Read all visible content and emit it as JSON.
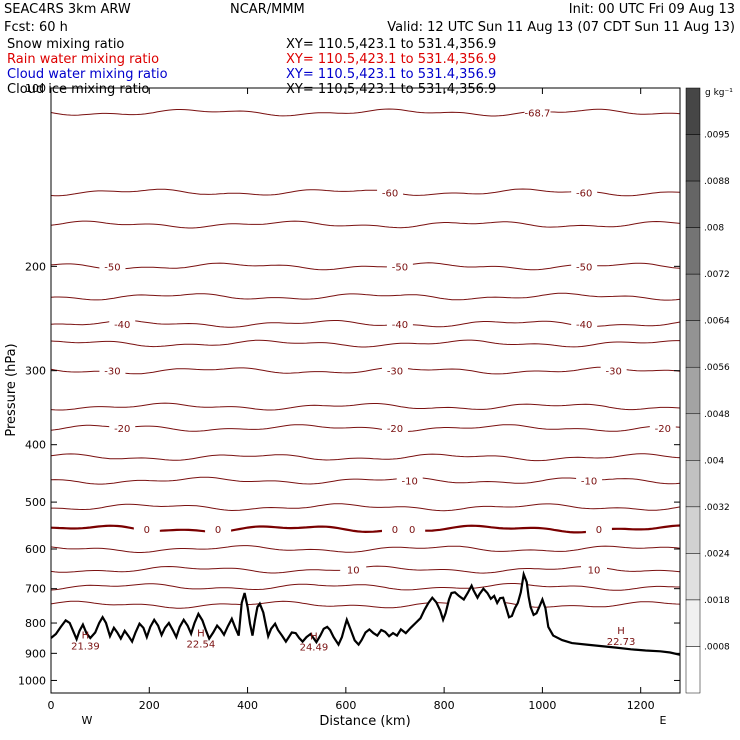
{
  "header": {
    "left1": "SEAC4RS  3km ARW",
    "center1": "NCAR/MMM",
    "right1": "Init: 00 UTC Fri 09 Aug 13",
    "left2": "Fcst:   60 h",
    "right2": "Valid: 12 UTC Sun 11 Aug 13 (07 CDT Sun 11 Aug 13)",
    "fields": [
      {
        "name": "Snow mixing ratio",
        "xy": "XY= 110.5,423.1 to 531.4,356.9",
        "color": "#000000"
      },
      {
        "name": "Rain water mixing ratio",
        "xy": "XY= 110.5,423.1 to 531.4,356.9",
        "color": "#dd0000"
      },
      {
        "name": "Cloud water mixing ratio",
        "xy": "XY= 110.5,423.1 to 531.4,356.9",
        "color": "#0000cc"
      },
      {
        "name": "Cloud ice mixing ratio",
        "xy": "XY= 110.5,423.1 to 531.4,356.9",
        "color": "#000000"
      }
    ]
  },
  "chart_data": {
    "type": "contour",
    "xlabel": "Distance (km)",
    "ylabel": "Pressure (hPa)",
    "xlim": [
      0,
      1280
    ],
    "ylim": [
      1050,
      100
    ],
    "y_log": true,
    "x_ticks": [
      0,
      200,
      400,
      600,
      800,
      1000,
      1200
    ],
    "y_ticks": [
      100,
      200,
      300,
      400,
      500,
      600,
      700,
      800,
      900,
      1000
    ],
    "x_end_labels": {
      "left": "W",
      "right": "E"
    },
    "contour_color": "#7a1010",
    "zero_color": "#7a0000",
    "temperature_contours": [
      {
        "level": "-68.7",
        "pressure": 110,
        "labels": [
          [
            990,
            "-68.7"
          ]
        ]
      },
      {
        "level": "-60",
        "pressure": 150,
        "labels": [
          [
            690,
            "-60"
          ],
          [
            1085,
            "-60"
          ]
        ]
      },
      {
        "level": "-55",
        "pressure": 170,
        "labels": []
      },
      {
        "level": "-50",
        "pressure": 200,
        "labels": [
          [
            125,
            "-50"
          ],
          [
            710,
            "-50"
          ],
          [
            1085,
            "-50"
          ]
        ]
      },
      {
        "level": "-45",
        "pressure": 225,
        "labels": []
      },
      {
        "level": "-40",
        "pressure": 250,
        "labels": [
          [
            145,
            "-40"
          ],
          [
            710,
            "-40"
          ],
          [
            1085,
            "-40"
          ]
        ]
      },
      {
        "level": "-35",
        "pressure": 270,
        "labels": []
      },
      {
        "level": "-30",
        "pressure": 300,
        "labels": [
          [
            125,
            "-30"
          ],
          [
            700,
            "-30"
          ],
          [
            1145,
            "-30"
          ]
        ]
      },
      {
        "level": "-25",
        "pressure": 345,
        "labels": []
      },
      {
        "level": "-20",
        "pressure": 375,
        "labels": [
          [
            145,
            "-20"
          ],
          [
            700,
            "-20"
          ],
          [
            1245,
            "-20"
          ]
        ]
      },
      {
        "level": "-15",
        "pressure": 420,
        "labels": []
      },
      {
        "level": "-10",
        "pressure": 460,
        "labels": [
          [
            730,
            "-10"
          ],
          [
            1095,
            "-10"
          ]
        ]
      },
      {
        "level": "-5",
        "pressure": 510,
        "labels": []
      },
      {
        "level": "0",
        "pressure": 555,
        "labels": [
          [
            195,
            "0"
          ],
          [
            340,
            "0"
          ],
          [
            700,
            "0"
          ],
          [
            735,
            "0"
          ],
          [
            1115,
            "0"
          ]
        ]
      },
      {
        "level": "5",
        "pressure": 600,
        "labels": []
      },
      {
        "level": "10",
        "pressure": 650,
        "labels": [
          [
            615,
            "10"
          ],
          [
            1105,
            "10"
          ]
        ]
      },
      {
        "level": "15",
        "pressure": 695,
        "labels": []
      },
      {
        "level": "20",
        "pressure": 745,
        "labels": []
      }
    ],
    "highs": [
      {
        "x": 70,
        "p": 850,
        "label": "H",
        "value": "21.39"
      },
      {
        "x": 305,
        "p": 843,
        "label": "H",
        "value": "22.54"
      },
      {
        "x": 535,
        "p": 853,
        "label": "H",
        "value": "24.49"
      },
      {
        "x": 1160,
        "p": 835,
        "label": "H",
        "value": "22.73"
      }
    ],
    "terrain": [
      [
        0,
        848
      ],
      [
        10,
        835
      ],
      [
        20,
        812
      ],
      [
        30,
        792
      ],
      [
        38,
        800
      ],
      [
        45,
        825
      ],
      [
        52,
        852
      ],
      [
        58,
        825
      ],
      [
        65,
        805
      ],
      [
        72,
        832
      ],
      [
        80,
        848
      ],
      [
        90,
        830
      ],
      [
        98,
        800
      ],
      [
        105,
        782
      ],
      [
        112,
        800
      ],
      [
        120,
        842
      ],
      [
        128,
        815
      ],
      [
        135,
        830
      ],
      [
        142,
        850
      ],
      [
        150,
        825
      ],
      [
        158,
        842
      ],
      [
        165,
        860
      ],
      [
        172,
        830
      ],
      [
        180,
        802
      ],
      [
        188,
        815
      ],
      [
        195,
        845
      ],
      [
        202,
        812
      ],
      [
        210,
        790
      ],
      [
        218,
        808
      ],
      [
        225,
        838
      ],
      [
        232,
        815
      ],
      [
        240,
        800
      ],
      [
        248,
        823
      ],
      [
        255,
        845
      ],
      [
        262,
        812
      ],
      [
        270,
        790
      ],
      [
        278,
        808
      ],
      [
        285,
        834
      ],
      [
        292,
        800
      ],
      [
        300,
        772
      ],
      [
        308,
        792
      ],
      [
        315,
        822
      ],
      [
        322,
        850
      ],
      [
        330,
        830
      ],
      [
        338,
        808
      ],
      [
        345,
        820
      ],
      [
        352,
        837
      ],
      [
        360,
        810
      ],
      [
        368,
        787
      ],
      [
        375,
        815
      ],
      [
        382,
        840
      ],
      [
        388,
        740
      ],
      [
        394,
        712
      ],
      [
        400,
        752
      ],
      [
        405,
        802
      ],
      [
        410,
        840
      ],
      [
        415,
        792
      ],
      [
        420,
        752
      ],
      [
        425,
        742
      ],
      [
        432,
        768
      ],
      [
        438,
        812
      ],
      [
        442,
        842
      ],
      [
        448,
        818
      ],
      [
        456,
        802
      ],
      [
        462,
        822
      ],
      [
        470,
        840
      ],
      [
        478,
        860
      ],
      [
        484,
        845
      ],
      [
        490,
        830
      ],
      [
        498,
        832
      ],
      [
        505,
        848
      ],
      [
        512,
        860
      ],
      [
        520,
        845
      ],
      [
        528,
        835
      ],
      [
        535,
        850
      ],
      [
        540,
        862
      ],
      [
        548,
        840
      ],
      [
        555,
        818
      ],
      [
        562,
        812
      ],
      [
        568,
        822
      ],
      [
        575,
        845
      ],
      [
        585,
        870
      ],
      [
        592,
        845
      ],
      [
        598,
        810
      ],
      [
        602,
        790
      ],
      [
        610,
        822
      ],
      [
        618,
        856
      ],
      [
        626,
        870
      ],
      [
        632,
        855
      ],
      [
        640,
        830
      ],
      [
        648,
        820
      ],
      [
        656,
        832
      ],
      [
        664,
        840
      ],
      [
        672,
        822
      ],
      [
        680,
        828
      ],
      [
        688,
        842
      ],
      [
        696,
        832
      ],
      [
        704,
        840
      ],
      [
        712,
        820
      ],
      [
        722,
        832
      ],
      [
        732,
        815
      ],
      [
        742,
        800
      ],
      [
        752,
        785
      ],
      [
        760,
        760
      ],
      [
        768,
        740
      ],
      [
        776,
        725
      ],
      [
        784,
        738
      ],
      [
        792,
        762
      ],
      [
        798,
        790
      ],
      [
        803,
        770
      ],
      [
        810,
        730
      ],
      [
        815,
        712
      ],
      [
        822,
        710
      ],
      [
        830,
        720
      ],
      [
        840,
        730
      ],
      [
        848,
        712
      ],
      [
        856,
        692
      ],
      [
        860,
        705
      ],
      [
        868,
        725
      ],
      [
        872,
        715
      ],
      [
        880,
        700
      ],
      [
        888,
        712
      ],
      [
        895,
        728
      ],
      [
        902,
        720
      ],
      [
        908,
        740
      ],
      [
        914,
        726
      ],
      [
        920,
        725
      ],
      [
        926,
        752
      ],
      [
        932,
        782
      ],
      [
        938,
        778
      ],
      [
        944,
        755
      ],
      [
        950,
        740
      ],
      [
        956,
        710
      ],
      [
        962,
        662
      ],
      [
        968,
        682
      ],
      [
        972,
        722
      ],
      [
        976,
        752
      ],
      [
        982,
        775
      ],
      [
        988,
        770
      ],
      [
        994,
        750
      ],
      [
        1000,
        730
      ],
      [
        1006,
        755
      ],
      [
        1012,
        812
      ],
      [
        1022,
        840
      ],
      [
        1040,
        855
      ],
      [
        1060,
        865
      ],
      [
        1090,
        870
      ],
      [
        1120,
        875
      ],
      [
        1150,
        880
      ],
      [
        1180,
        886
      ],
      [
        1210,
        890
      ],
      [
        1240,
        893
      ],
      [
        1260,
        897
      ],
      [
        1280,
        905
      ]
    ]
  },
  "colorbar": {
    "unit": "g kg⁻¹",
    "labels": [
      ".0095",
      ".0088",
      ".008",
      ".0072",
      ".0064",
      ".0056",
      ".0048",
      ".004",
      ".0032",
      ".0024",
      ".0018",
      ".0008"
    ]
  }
}
